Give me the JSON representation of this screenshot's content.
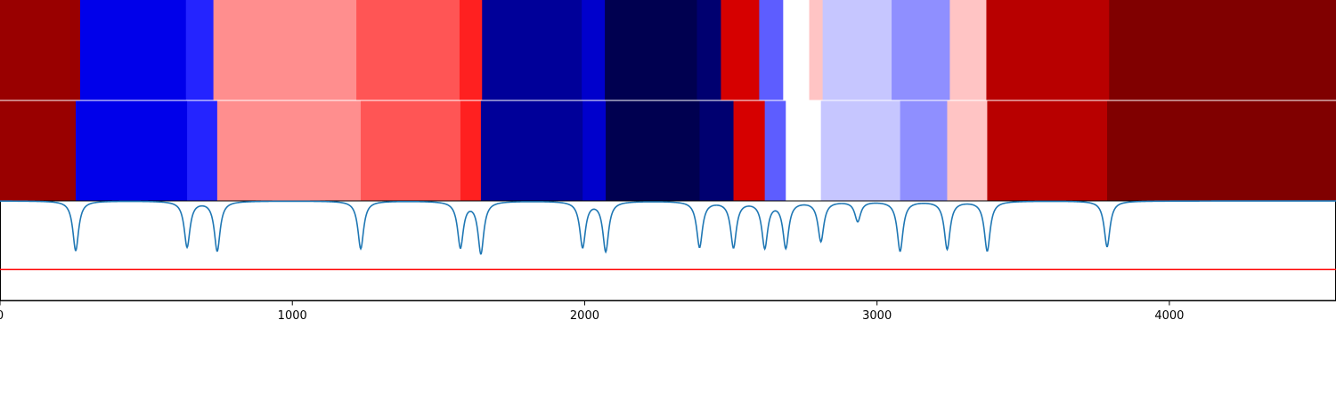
{
  "chart_data": {
    "type": "heatmap",
    "title": "",
    "xlabel": "",
    "ylabel": "",
    "xlim": [
      0,
      4570
    ],
    "x_ticks": [
      {
        "value": 0,
        "label": "0"
      },
      {
        "value": 1000,
        "label": "1000"
      },
      {
        "value": 2000,
        "label": "2000"
      },
      {
        "value": 3000,
        "label": "3000"
      },
      {
        "value": 4000,
        "label": "4000"
      }
    ],
    "rows": [
      {
        "segments": [
          {
            "start": 0,
            "end": 274,
            "color": "#990000"
          },
          {
            "start": 274,
            "end": 636,
            "color": "#0000ea"
          },
          {
            "start": 636,
            "end": 730,
            "color": "#2424ff"
          },
          {
            "start": 730,
            "end": 1219,
            "color": "#ff8e8e"
          },
          {
            "start": 1219,
            "end": 1572,
            "color": "#ff5555"
          },
          {
            "start": 1572,
            "end": 1649,
            "color": "#ff2020"
          },
          {
            "start": 1649,
            "end": 1990,
            "color": "#000099"
          },
          {
            "start": 1990,
            "end": 2069,
            "color": "#0000cc"
          },
          {
            "start": 2069,
            "end": 2384,
            "color": "#000050"
          },
          {
            "start": 2384,
            "end": 2466,
            "color": "#000070"
          },
          {
            "start": 2466,
            "end": 2597,
            "color": "#d60000"
          },
          {
            "start": 2597,
            "end": 2679,
            "color": "#5d5dff"
          },
          {
            "start": 2679,
            "end": 2768,
            "color": "#ffffff"
          },
          {
            "start": 2768,
            "end": 2814,
            "color": "#ffc4c4"
          },
          {
            "start": 2814,
            "end": 3050,
            "color": "#c6c6ff"
          },
          {
            "start": 3050,
            "end": 3249,
            "color": "#8f8fff"
          },
          {
            "start": 3249,
            "end": 3374,
            "color": "#ffc4c4"
          },
          {
            "start": 3374,
            "end": 3794,
            "color": "#b80000"
          },
          {
            "start": 3794,
            "end": 4570,
            "color": "#800000"
          }
        ]
      },
      {
        "segments": [
          {
            "start": 0,
            "end": 259,
            "color": "#990000"
          },
          {
            "start": 259,
            "end": 640,
            "color": "#0000ea"
          },
          {
            "start": 640,
            "end": 743,
            "color": "#2424ff"
          },
          {
            "start": 743,
            "end": 1234,
            "color": "#ff8e8e"
          },
          {
            "start": 1234,
            "end": 1575,
            "color": "#ff5555"
          },
          {
            "start": 1575,
            "end": 1645,
            "color": "#ff2020"
          },
          {
            "start": 1645,
            "end": 1993,
            "color": "#000099"
          },
          {
            "start": 1993,
            "end": 2072,
            "color": "#0000cc"
          },
          {
            "start": 2072,
            "end": 2393,
            "color": "#000050"
          },
          {
            "start": 2393,
            "end": 2509,
            "color": "#000070"
          },
          {
            "start": 2509,
            "end": 2616,
            "color": "#d60000"
          },
          {
            "start": 2616,
            "end": 2688,
            "color": "#5d5dff"
          },
          {
            "start": 2688,
            "end": 2808,
            "color": "#ffffff"
          },
          {
            "start": 2808,
            "end": 3079,
            "color": "#c6c6ff"
          },
          {
            "start": 3079,
            "end": 3240,
            "color": "#8f8fff"
          },
          {
            "start": 3240,
            "end": 3377,
            "color": "#ffc4c4"
          },
          {
            "start": 3377,
            "end": 3787,
            "color": "#b80000"
          },
          {
            "start": 3787,
            "end": 4570,
            "color": "#800000"
          }
        ]
      }
    ],
    "trace": {
      "color": "#1f77b4",
      "ylim": [
        0,
        1
      ],
      "baseline": 1,
      "dips": [
        {
          "x": 259,
          "depth": 0.5
        },
        {
          "x": 640,
          "depth": 0.46
        },
        {
          "x": 743,
          "depth": 0.5
        },
        {
          "x": 1234,
          "depth": 0.48
        },
        {
          "x": 1575,
          "depth": 0.46
        },
        {
          "x": 1645,
          "depth": 0.52
        },
        {
          "x": 1993,
          "depth": 0.46
        },
        {
          "x": 2072,
          "depth": 0.5
        },
        {
          "x": 2393,
          "depth": 0.46
        },
        {
          "x": 2509,
          "depth": 0.46
        },
        {
          "x": 2616,
          "depth": 0.46
        },
        {
          "x": 2688,
          "depth": 0.46
        },
        {
          "x": 2808,
          "depth": 0.4
        },
        {
          "x": 2934,
          "depth": 0.2
        },
        {
          "x": 3079,
          "depth": 0.5
        },
        {
          "x": 3240,
          "depth": 0.48
        },
        {
          "x": 3377,
          "depth": 0.5
        },
        {
          "x": 3787,
          "depth": 0.46
        }
      ]
    },
    "threshold": {
      "value": 0.31,
      "color": "#ff0000"
    }
  }
}
